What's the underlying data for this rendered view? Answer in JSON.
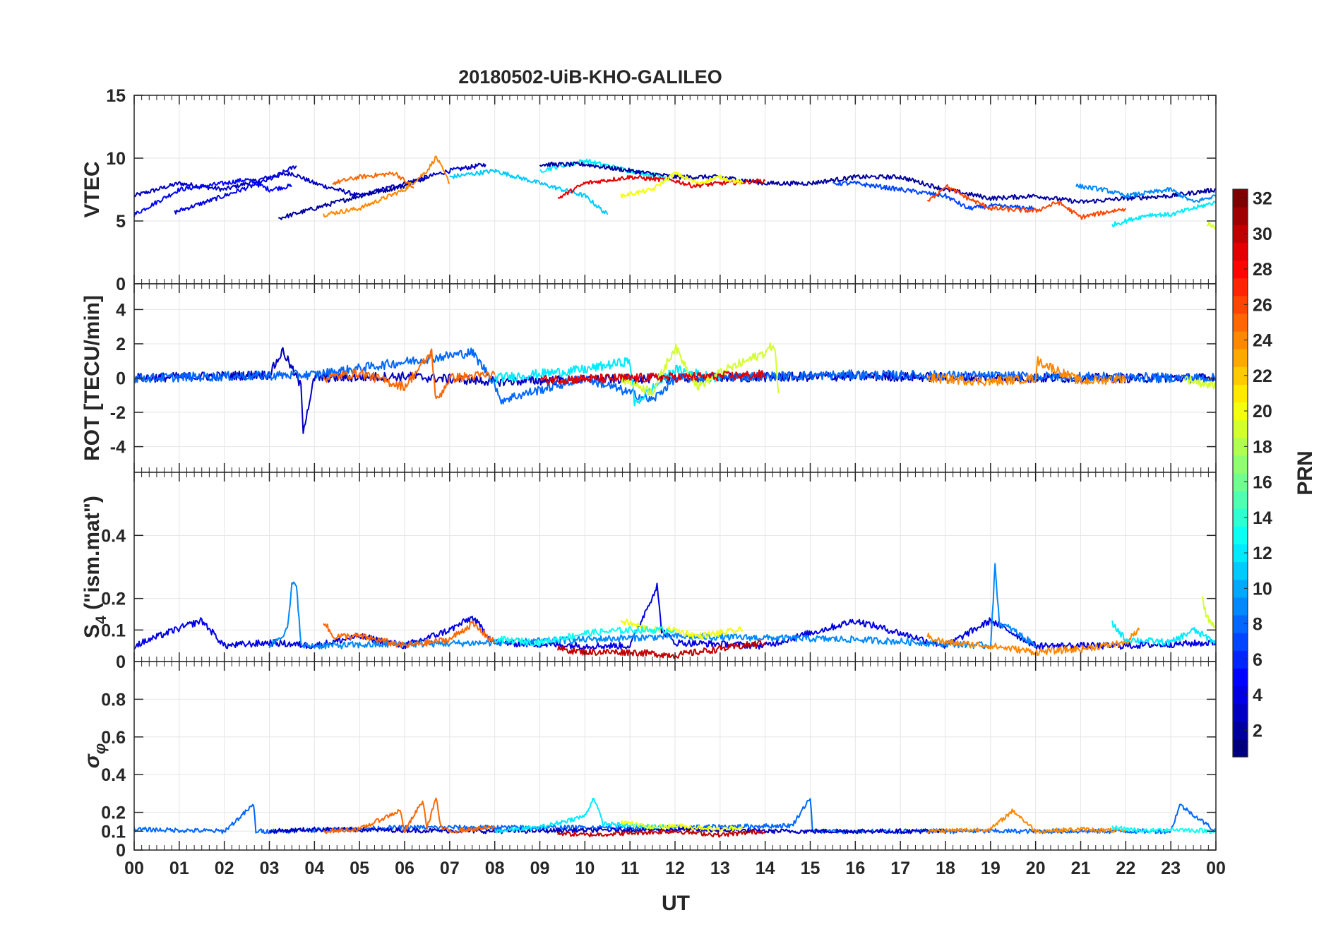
{
  "title": "20180502-UiB-KHO-GALILEO",
  "xlabel": "UT",
  "x_ticks": [
    "00",
    "01",
    "02",
    "03",
    "04",
    "05",
    "06",
    "07",
    "08",
    "09",
    "10",
    "11",
    "12",
    "13",
    "14",
    "15",
    "16",
    "17",
    "18",
    "19",
    "20",
    "21",
    "22",
    "23",
    "00"
  ],
  "colorbar": {
    "label": "PRN",
    "range": [
      1,
      32
    ],
    "tick_labels": [
      "2",
      "4",
      "6",
      "8",
      "10",
      "12",
      "14",
      "16",
      "18",
      "20",
      "22",
      "24",
      "26",
      "28",
      "30",
      "32"
    ],
    "colormap": "jet",
    "colors": [
      "#00008f",
      "#0000df",
      "#0030ff",
      "#0080ff",
      "#00d0ff",
      "#20ffdf",
      "#70ff8f",
      "#c0ff40",
      "#ffef00",
      "#ff9f00",
      "#ff5000",
      "#ff0000",
      "#af0000",
      "#800000"
    ]
  },
  "chart_data": [
    {
      "type": "line",
      "panel": "VTEC",
      "ylabel": "VTEC",
      "ylim": [
        0,
        15
      ],
      "y_ticks": [
        "0",
        "5",
        "10",
        "15"
      ],
      "grid": true,
      "xlim": [
        0,
        24
      ],
      "series": [
        {
          "prn": 3,
          "x": [
            0.0,
            1.0,
            2.0,
            3.0,
            3.5,
            4.0,
            5.0,
            6.0,
            7.0,
            7.8
          ],
          "y": [
            7.0,
            8.0,
            7.5,
            8.5,
            8.8,
            8.0,
            7.0,
            8.0,
            9.0,
            9.5
          ]
        },
        {
          "prn": 5,
          "x": [
            0.0,
            1.0,
            2.0,
            2.5,
            3.0,
            3.5
          ],
          "y": [
            5.5,
            7.5,
            8.0,
            8.3,
            7.5,
            7.8
          ]
        },
        {
          "prn": 4,
          "x": [
            0.9,
            2.0,
            3.0,
            3.6
          ],
          "y": [
            5.7,
            7.0,
            8.3,
            9.4
          ]
        },
        {
          "prn": 2,
          "x": [
            3.2,
            4.0,
            5.0,
            6.0,
            6.5
          ],
          "y": [
            5.2,
            6.0,
            7.0,
            7.8,
            8.5
          ]
        },
        {
          "prn": 24,
          "x": [
            4.2,
            5.0,
            6.0,
            6.5,
            6.7,
            7.0
          ],
          "y": [
            5.5,
            6.0,
            7.5,
            9.0,
            10.1,
            8.0
          ]
        },
        {
          "prn": 25,
          "x": [
            4.4,
            5.0,
            5.8,
            6.2
          ],
          "y": [
            8.0,
            8.5,
            8.8,
            7.6
          ]
        },
        {
          "prn": 11,
          "x": [
            7.0,
            8.0,
            9.0,
            10.0,
            10.5
          ],
          "y": [
            8.5,
            9.0,
            8.0,
            7.0,
            5.5
          ]
        },
        {
          "prn": 12,
          "x": [
            9.0,
            10.0,
            11.0,
            11.8
          ],
          "y": [
            9.0,
            9.8,
            9.0,
            8.5
          ]
        },
        {
          "prn": 2,
          "x": [
            9.0,
            10.0,
            11.0,
            12.0,
            13.0,
            14.0,
            15.0,
            16.0,
            17.0,
            18.0,
            19.0,
            20.0,
            21.0,
            22.0,
            23.0,
            24.0
          ],
          "y": [
            9.5,
            9.5,
            9.0,
            8.5,
            8.5,
            8.0,
            8.0,
            8.5,
            8.5,
            7.5,
            6.8,
            7.0,
            6.5,
            6.8,
            7.0,
            7.5
          ]
        },
        {
          "prn": 29,
          "x": [
            9.4,
            10.0,
            11.0,
            12.0,
            12.4,
            13.0,
            14.0
          ],
          "y": [
            6.8,
            8.0,
            8.5,
            8.2,
            7.8,
            8.0,
            8.2
          ]
        },
        {
          "prn": 20,
          "x": [
            10.8,
            11.5,
            12.0,
            12.5,
            13.0,
            13.5
          ],
          "y": [
            7.0,
            7.5,
            8.8,
            8.0,
            8.5,
            8.0
          ]
        },
        {
          "prn": 7,
          "x": [
            15.5,
            16.0,
            17.0,
            18.0,
            18.5,
            19.0,
            20.0
          ],
          "y": [
            8.0,
            8.0,
            7.5,
            7.0,
            6.0,
            6.2,
            6.0
          ]
        },
        {
          "prn": 26,
          "x": [
            17.6,
            18.0,
            18.5,
            19.0,
            20.0,
            20.5,
            21.0,
            22.0
          ],
          "y": [
            6.5,
            7.8,
            6.8,
            6.0,
            5.8,
            6.5,
            5.3,
            6.0
          ]
        },
        {
          "prn": 9,
          "x": [
            20.9,
            21.5,
            22.0,
            23.0,
            23.5,
            24.0
          ],
          "y": [
            7.8,
            7.5,
            7.0,
            7.5,
            6.5,
            7.0
          ]
        },
        {
          "prn": 12,
          "x": [
            21.7,
            22.5,
            23.0,
            24.0
          ],
          "y": [
            4.7,
            5.5,
            5.5,
            6.5
          ]
        },
        {
          "prn": 19,
          "x": [
            23.8,
            24.0
          ],
          "y": [
            4.8,
            4.5
          ]
        }
      ]
    },
    {
      "type": "line",
      "panel": "ROT",
      "ylabel": "ROT [TECU/min]",
      "ylim": [
        -5.5,
        5.5
      ],
      "y_ticks": [
        "-4",
        "-2",
        "0",
        "2",
        "4"
      ],
      "grid": true,
      "xlim": [
        0,
        24
      ],
      "series": [
        {
          "prn": 3,
          "x": [
            0.0,
            3.0,
            3.3,
            3.7,
            3.75,
            4.0,
            6.0,
            8.0,
            12.0,
            16.0,
            20.0,
            24.0
          ],
          "y": [
            0.0,
            0.2,
            1.6,
            -0.5,
            -3.0,
            0.0,
            0.1,
            -0.2,
            0.0,
            0.1,
            0.0,
            0.0
          ]
        },
        {
          "prn": 8,
          "x": [
            0.0,
            4.0,
            7.5,
            8.0,
            8.1,
            10.0,
            11.5,
            12.0,
            16.0,
            24.0
          ],
          "y": [
            0.0,
            0.2,
            1.5,
            -0.3,
            -1.3,
            0.0,
            -1.3,
            0.0,
            0.2,
            0.0
          ]
        },
        {
          "prn": 25,
          "x": [
            4.2,
            5.0,
            6.0,
            6.6,
            6.7,
            7.0,
            8.0
          ],
          "y": [
            0.0,
            0.3,
            -0.5,
            1.5,
            -1.4,
            0.0,
            0.2
          ]
        },
        {
          "prn": 12,
          "x": [
            8.0,
            10.0,
            11.0,
            11.1,
            12.0,
            13.0
          ],
          "y": [
            0.0,
            0.5,
            1.0,
            -1.5,
            0.5,
            0.0
          ]
        },
        {
          "prn": 19,
          "x": [
            10.8,
            11.5,
            12.0,
            12.5,
            13.0,
            14.0,
            14.2,
            14.3
          ],
          "y": [
            0.0,
            -0.8,
            1.8,
            -0.5,
            0.3,
            1.5,
            2.0,
            -0.9
          ]
        },
        {
          "prn": 29,
          "x": [
            9.0,
            11.0,
            13.0,
            14.0
          ],
          "y": [
            -0.1,
            0.0,
            0.1,
            0.2
          ]
        },
        {
          "prn": 24,
          "x": [
            17.6,
            19.0,
            20.0,
            20.05,
            21.0,
            22.0
          ],
          "y": [
            0.0,
            -0.2,
            0.0,
            1.0,
            -0.2,
            0.0
          ]
        },
        {
          "prn": 19,
          "x": [
            23.3,
            24.0
          ],
          "y": [
            0.0,
            -0.5
          ]
        }
      ]
    },
    {
      "type": "line",
      "panel": "S4",
      "ylabel": "S4 (\"ism.mat\")",
      "ylim": [
        0,
        0.6
      ],
      "y_ticks": [
        "0",
        "0.1",
        "0.2",
        "0.4"
      ],
      "grid": true,
      "xlim": [
        0,
        24
      ],
      "series": [
        {
          "prn": 4,
          "x": [
            0.0,
            0.9,
            1.5,
            2.0,
            3.0,
            4.0,
            5.0,
            6.0,
            7.0,
            7.5,
            8.0,
            10.0,
            11.0,
            11.6,
            11.7,
            12.0,
            14.0,
            16.0,
            18.0,
            19.0,
            20.0,
            22.0,
            24.0
          ],
          "y": [
            0.05,
            0.1,
            0.13,
            0.05,
            0.06,
            0.05,
            0.08,
            0.05,
            0.1,
            0.14,
            0.06,
            0.05,
            0.05,
            0.24,
            0.1,
            0.06,
            0.05,
            0.13,
            0.05,
            0.13,
            0.05,
            0.05,
            0.06
          ]
        },
        {
          "prn": 9,
          "x": [
            3.0,
            3.4,
            3.5,
            3.6,
            3.7,
            4.0,
            8.0,
            12.0,
            16.0,
            19.0,
            19.1,
            19.2,
            19.5,
            20.0
          ],
          "y": [
            0.05,
            0.1,
            0.24,
            0.25,
            0.05,
            0.05,
            0.06,
            0.08,
            0.07,
            0.05,
            0.3,
            0.12,
            0.1,
            0.05
          ]
        },
        {
          "prn": 25,
          "x": [
            4.2,
            4.4,
            5.0,
            6.0,
            7.0,
            7.5,
            8.0
          ],
          "y": [
            0.13,
            0.08,
            0.08,
            0.05,
            0.07,
            0.12,
            0.06
          ]
        },
        {
          "prn": 20,
          "x": [
            10.8,
            11.0,
            11.5,
            12.0,
            12.5,
            13.0,
            13.5
          ],
          "y": [
            0.13,
            0.12,
            0.1,
            0.1,
            0.08,
            0.09,
            0.1
          ]
        },
        {
          "prn": 13,
          "x": [
            8.0,
            9.0,
            10.0,
            11.0,
            12.0
          ],
          "y": [
            0.07,
            0.06,
            0.09,
            0.1,
            0.1
          ]
        },
        {
          "prn": 30,
          "x": [
            9.4,
            10.0,
            11.0,
            12.0,
            13.0,
            14.0
          ],
          "y": [
            0.04,
            0.03,
            0.03,
            0.02,
            0.04,
            0.06
          ]
        },
        {
          "prn": 24,
          "x": [
            17.6,
            18.0,
            19.0,
            20.0,
            21.0,
            22.0,
            22.3
          ],
          "y": [
            0.08,
            0.06,
            0.05,
            0.03,
            0.04,
            0.06,
            0.1
          ]
        },
        {
          "prn": 12,
          "x": [
            21.7,
            22.0,
            23.0,
            23.5,
            24.0
          ],
          "y": [
            0.12,
            0.07,
            0.06,
            0.1,
            0.06
          ]
        },
        {
          "prn": 19,
          "x": [
            23.7,
            23.8,
            24.0
          ],
          "y": [
            0.2,
            0.14,
            0.11
          ]
        }
      ]
    },
    {
      "type": "line",
      "panel": "sigma_phi",
      "ylabel": "σ φ",
      "ylim": [
        0,
        1.0
      ],
      "y_ticks": [
        "0",
        "0.1",
        "0.2",
        "0.4",
        "0.6",
        "0.8"
      ],
      "grid": true,
      "xlim": [
        0,
        24
      ],
      "series": [
        {
          "prn": 8,
          "x": [
            0.0,
            2.0,
            2.65,
            2.7,
            3.0,
            6.0,
            8.0,
            12.0,
            14.6,
            15.0,
            15.05,
            16.0,
            20.0,
            22.0,
            23.0,
            23.2,
            24.0
          ],
          "y": [
            0.11,
            0.1,
            0.24,
            0.1,
            0.1,
            0.12,
            0.12,
            0.12,
            0.13,
            0.28,
            0.1,
            0.1,
            0.1,
            0.1,
            0.1,
            0.24,
            0.1
          ]
        },
        {
          "prn": 3,
          "x": [
            3.0,
            4.0,
            8.0,
            12.0,
            14.0,
            16.0,
            18.0
          ],
          "y": [
            0.1,
            0.11,
            0.1,
            0.11,
            0.1,
            0.1,
            0.1
          ]
        },
        {
          "prn": 25,
          "x": [
            4.2,
            5.0,
            5.9,
            6.0,
            6.4,
            6.5,
            6.7,
            6.8,
            7.0,
            8.0
          ],
          "y": [
            0.1,
            0.11,
            0.21,
            0.1,
            0.26,
            0.12,
            0.28,
            0.12,
            0.1,
            0.12
          ]
        },
        {
          "prn": 12,
          "x": [
            8.0,
            9.0,
            10.0,
            10.2,
            10.4,
            11.0,
            12.0
          ],
          "y": [
            0.1,
            0.12,
            0.18,
            0.28,
            0.14,
            0.13,
            0.12
          ]
        },
        {
          "prn": 30,
          "x": [
            9.4,
            10.0,
            11.0,
            12.0,
            13.0,
            14.0
          ],
          "y": [
            0.09,
            0.08,
            0.09,
            0.1,
            0.08,
            0.1
          ]
        },
        {
          "prn": 20,
          "x": [
            10.8,
            11.5,
            12.0,
            13.0,
            13.5
          ],
          "y": [
            0.15,
            0.12,
            0.13,
            0.11,
            0.12
          ]
        },
        {
          "prn": 24,
          "x": [
            17.6,
            19.0,
            19.5,
            20.0,
            21.0,
            22.0
          ],
          "y": [
            0.1,
            0.11,
            0.21,
            0.1,
            0.11,
            0.1
          ]
        },
        {
          "prn": 13,
          "x": [
            21.7,
            22.5,
            23.0,
            24.0
          ],
          "y": [
            0.12,
            0.1,
            0.11,
            0.1
          ]
        }
      ]
    }
  ]
}
